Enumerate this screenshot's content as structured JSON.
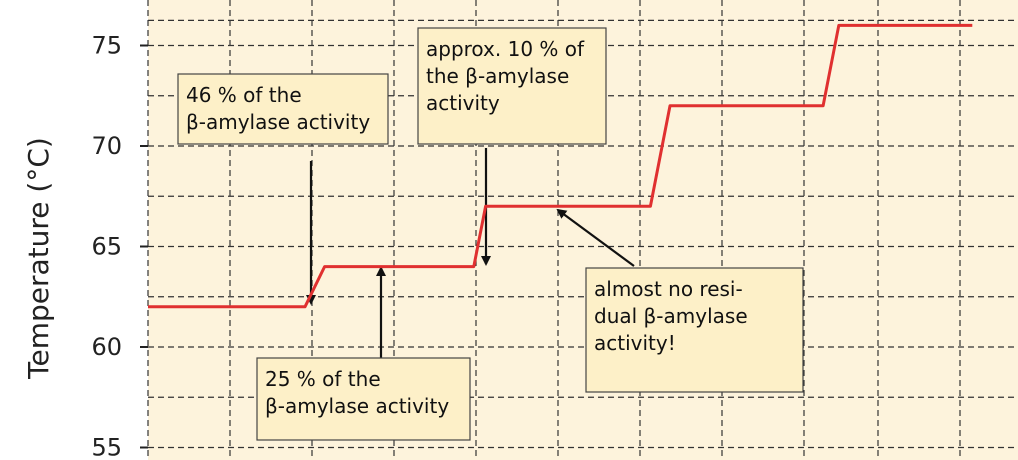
{
  "chart_data": {
    "type": "line",
    "ylabel": "Temperature (°C)",
    "xlabel": "",
    "ylim": [
      55,
      76.5
    ],
    "yticks": [
      55,
      60,
      65,
      70,
      75
    ],
    "grid": true,
    "x_range": [
      0,
      10.5
    ],
    "series": [
      {
        "color": "#e03030",
        "x": [
          0,
          2.0,
          2.25,
          4.15,
          4.3,
          6.4,
          6.65,
          8.6,
          8.8,
          10.5
        ],
        "y": [
          62,
          62,
          64,
          64,
          67,
          67,
          72,
          72,
          76,
          76
        ]
      }
    ],
    "annotations": [
      {
        "id": "note-46",
        "lines": [
          "46 % of the",
          "β-amylase activity"
        ],
        "point": [
          2.0,
          62
        ]
      },
      {
        "id": "note-25",
        "lines": [
          "25 % of the",
          "β-amylase activity"
        ],
        "point": [
          2.85,
          64
        ]
      },
      {
        "id": "note-10",
        "lines": [
          "approx. 10 % of",
          "the β-amylase",
          "activity"
        ],
        "point": [
          4.15,
          64
        ]
      },
      {
        "id": "note-none",
        "lines": [
          "almost no resi-",
          "dual β-amylase",
          "activity!"
        ],
        "point": [
          5.0,
          67
        ]
      }
    ]
  },
  "colors": {
    "plot_background": "#fdf3dc",
    "note_background": "#fdf0c8",
    "line": "#e03030"
  }
}
